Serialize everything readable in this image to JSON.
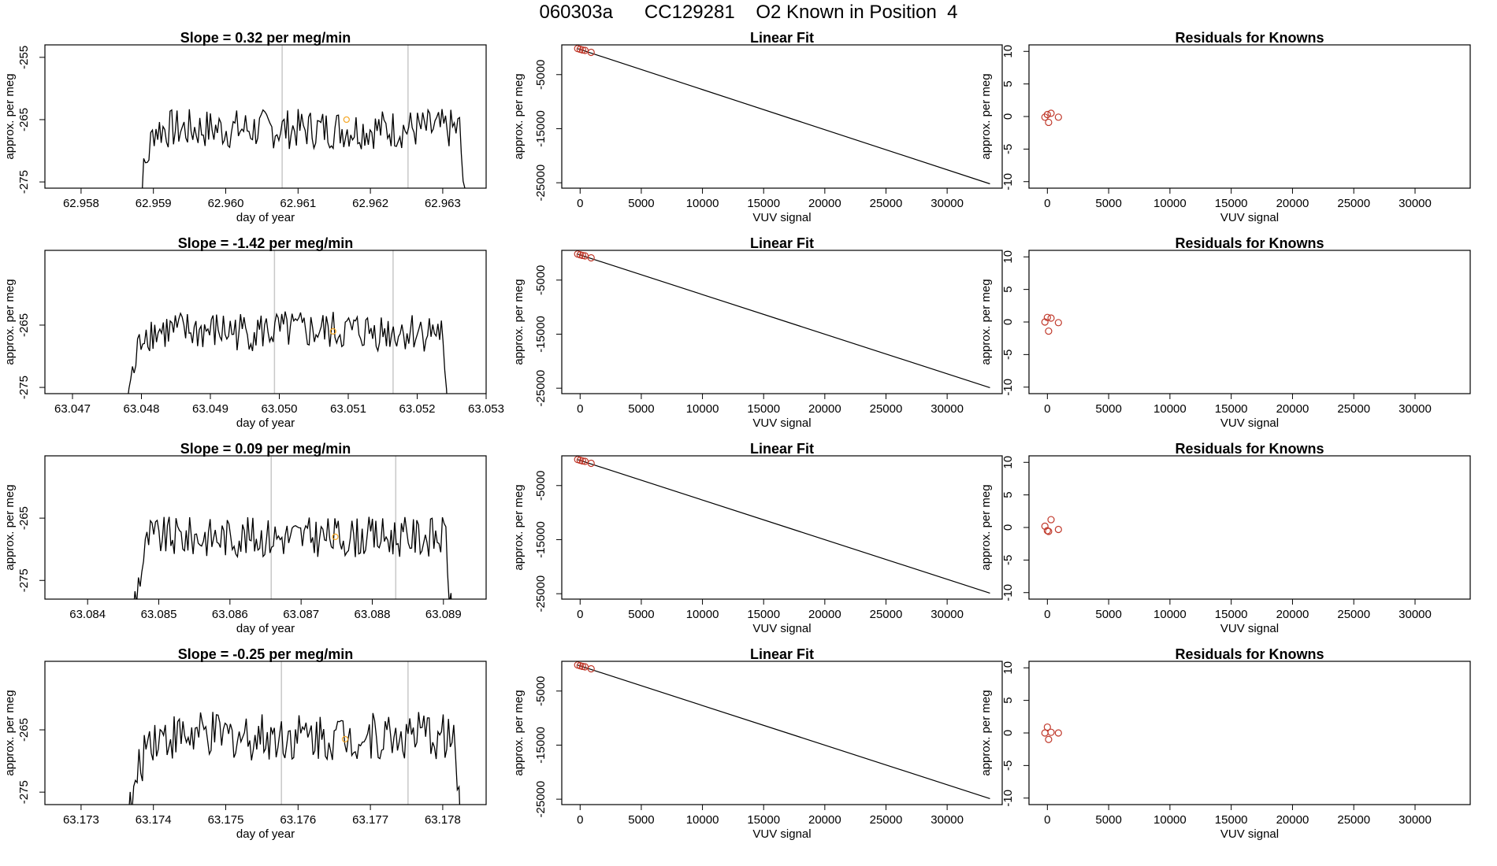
{
  "title": "060303a      CC129281    O2 Known in Position  4",
  "colors": {
    "line": "#000000",
    "marker_orange": "#f5a623",
    "marker_red": "#c0392b",
    "vline": "#c8c8c8"
  },
  "chart_data": [
    {
      "type": "line",
      "row": 1,
      "title": "Slope =  0.32  per meg/min",
      "xlabel": "day of year",
      "ylabel": "approx. per meg",
      "xlim": [
        62.9575,
        62.9636
      ],
      "ylim": [
        -276,
        -253
      ],
      "xticks": [
        62.958,
        62.959,
        62.96,
        62.961,
        62.962,
        62.963
      ],
      "xtick_labels": [
        "62.958",
        "62.959",
        "62.960",
        "62.961",
        "62.962",
        "62.963"
      ],
      "yticks": [
        -255,
        -265,
        -275
      ],
      "ytick_labels": [
        "-255",
        "-265",
        "-275"
      ],
      "vlines": [
        62.96078,
        62.96252
      ],
      "series_x_range": [
        62.95872,
        62.96333
      ],
      "series_mean": -266.5,
      "series_spread": 2.5,
      "marker": {
        "x": 62.96167,
        "y": -265.0
      }
    },
    {
      "type": "line",
      "row": 2,
      "title": "Slope =  -1.42  per meg/min",
      "xlabel": "day of year",
      "ylabel": "approx. per meg",
      "xlim": [
        63.0466,
        63.053
      ],
      "ylim": [
        -276,
        -253
      ],
      "xticks": [
        63.047,
        63.048,
        63.049,
        63.05,
        63.051,
        63.052,
        63.053
      ],
      "xtick_labels": [
        "63.047",
        "63.048",
        "63.049",
        "63.050",
        "63.051",
        "63.052",
        "63.053"
      ],
      "yticks": [
        -265,
        -275
      ],
      "ytick_labels": [
        "-265",
        "-275"
      ],
      "vlines": [
        63.04993,
        63.05165
      ],
      "series_x_range": [
        63.04772,
        63.05245
      ],
      "series_mean": -266.0,
      "series_spread": 2.5,
      "marker": {
        "x": 63.05078,
        "y": -266.0
      }
    },
    {
      "type": "line",
      "row": 3,
      "title": "Slope =  0.09  per meg/min",
      "xlabel": "day of year",
      "ylabel": "approx. per meg",
      "xlim": [
        63.0834,
        63.0896
      ],
      "ylim": [
        -278,
        -255
      ],
      "xticks": [
        63.084,
        63.085,
        63.086,
        63.087,
        63.088,
        63.089
      ],
      "xtick_labels": [
        "63.084",
        "63.085",
        "63.086",
        "63.087",
        "63.088",
        "63.089"
      ],
      "yticks": [
        -265,
        -275
      ],
      "ytick_labels": [
        "-265",
        "-275"
      ],
      "vlines": [
        63.08658,
        63.08833
      ],
      "series_x_range": [
        63.08457,
        63.08913
      ],
      "series_mean": -268.0,
      "series_spread": 2.5,
      "marker": {
        "x": 63.08748,
        "y": -268.0
      }
    },
    {
      "type": "line",
      "row": 4,
      "title": "Slope =  -0.25  per meg/min",
      "xlabel": "day of year",
      "ylabel": "approx. per meg",
      "xlim": [
        63.1725,
        63.1786
      ],
      "ylim": [
        -277,
        -254
      ],
      "xticks": [
        63.173,
        63.174,
        63.175,
        63.176,
        63.177,
        63.178
      ],
      "xtick_labels": [
        "63.173",
        "63.174",
        "63.175",
        "63.176",
        "63.177",
        "63.178"
      ],
      "yticks": [
        -265,
        -275
      ],
      "ytick_labels": [
        "-265",
        "-275"
      ],
      "vlines": [
        63.17577,
        63.17752
      ],
      "series_x_range": [
        63.17363,
        63.17825
      ],
      "series_mean": -266.0,
      "series_spread": 3.0,
      "marker": {
        "x": 63.17665,
        "y": -266.5
      }
    },
    {
      "type": "scatter",
      "row": 1,
      "title": "Linear Fit",
      "xlabel": "VUV signal",
      "ylabel": "approx. per meg",
      "xlim": [
        -1500,
        34500
      ],
      "ylim": [
        -26000,
        500
      ],
      "xticks": [
        0,
        5000,
        10000,
        15000,
        20000,
        25000,
        30000
      ],
      "xtick_labels": [
        "0",
        "5000",
        "10000",
        "15000",
        "20000",
        "25000",
        "30000"
      ],
      "yticks": [
        -5000,
        -15000,
        -25000
      ],
      "ytick_labels": [
        "-5000",
        "-15000",
        "-25000"
      ],
      "fit_line": [
        [
          -200,
          -200
        ],
        [
          33500,
          -25200
        ]
      ],
      "points": [
        [
          -200,
          -180
        ],
        [
          0,
          -320
        ],
        [
          200,
          -440
        ],
        [
          400,
          -520
        ],
        [
          900,
          -880
        ]
      ]
    },
    {
      "type": "scatter",
      "row": 2,
      "title": "Linear Fit",
      "xlabel": "VUV signal",
      "ylabel": "approx. per meg",
      "xlim": [
        -1500,
        34500
      ],
      "ylim": [
        -26000,
        500
      ],
      "xticks": [
        0,
        5000,
        10000,
        15000,
        20000,
        25000,
        30000
      ],
      "xtick_labels": [
        "0",
        "5000",
        "10000",
        "15000",
        "20000",
        "25000",
        "30000"
      ],
      "yticks": [
        -5000,
        -15000,
        -25000
      ],
      "ytick_labels": [
        "-5000",
        "-15000",
        "-25000"
      ],
      "fit_line": [
        [
          -200,
          -200
        ],
        [
          33500,
          -24900
        ]
      ],
      "points": [
        [
          -200,
          -180
        ],
        [
          0,
          -320
        ],
        [
          200,
          -440
        ],
        [
          400,
          -520
        ],
        [
          900,
          -880
        ]
      ]
    },
    {
      "type": "scatter",
      "row": 3,
      "title": "Linear Fit",
      "xlabel": "VUV signal",
      "ylabel": "approx. per meg",
      "xlim": [
        -1500,
        34500
      ],
      "ylim": [
        -26000,
        500
      ],
      "xticks": [
        0,
        5000,
        10000,
        15000,
        20000,
        25000,
        30000
      ],
      "xtick_labels": [
        "0",
        "5000",
        "10000",
        "15000",
        "20000",
        "25000",
        "30000"
      ],
      "yticks": [
        -5000,
        -15000,
        -25000
      ],
      "ytick_labels": [
        "-5000",
        "-15000",
        "-25000"
      ],
      "fit_line": [
        [
          -200,
          -200
        ],
        [
          33500,
          -24900
        ]
      ],
      "points": [
        [
          -200,
          -180
        ],
        [
          0,
          -320
        ],
        [
          200,
          -440
        ],
        [
          400,
          -520
        ],
        [
          900,
          -880
        ]
      ]
    },
    {
      "type": "scatter",
      "row": 4,
      "title": "Linear Fit",
      "xlabel": "VUV signal",
      "ylabel": "approx. per meg",
      "xlim": [
        -1500,
        34500
      ],
      "ylim": [
        -26000,
        500
      ],
      "xticks": [
        0,
        5000,
        10000,
        15000,
        20000,
        25000,
        30000
      ],
      "xtick_labels": [
        "0",
        "5000",
        "10000",
        "15000",
        "20000",
        "25000",
        "30000"
      ],
      "yticks": [
        -5000,
        -15000,
        -25000
      ],
      "ytick_labels": [
        "-5000",
        "-15000",
        "-25000"
      ],
      "fit_line": [
        [
          -200,
          -200
        ],
        [
          33500,
          -24900
        ]
      ],
      "points": [
        [
          -200,
          -180
        ],
        [
          0,
          -320
        ],
        [
          200,
          -440
        ],
        [
          400,
          -520
        ],
        [
          900,
          -880
        ]
      ]
    },
    {
      "type": "scatter",
      "row": 1,
      "title": "Residuals for Knowns",
      "xlabel": "VUV signal",
      "ylabel": "approx. per meg",
      "xlim": [
        -1500,
        34500
      ],
      "ylim": [
        -11,
        11
      ],
      "xticks": [
        0,
        5000,
        10000,
        15000,
        20000,
        25000,
        30000
      ],
      "xtick_labels": [
        "0",
        "5000",
        "10000",
        "15000",
        "20000",
        "25000",
        "30000"
      ],
      "yticks": [
        10,
        5,
        0,
        -5,
        -10
      ],
      "ytick_labels": [
        "10",
        "5",
        "0",
        "-5",
        "-10"
      ],
      "points": [
        [
          -200,
          -0.1
        ],
        [
          0,
          0.3
        ],
        [
          100,
          -0.9
        ],
        [
          300,
          0.5
        ],
        [
          900,
          -0.1
        ]
      ]
    },
    {
      "type": "scatter",
      "row": 2,
      "title": "Residuals for Knowns",
      "xlabel": "VUV signal",
      "ylabel": "approx. per meg",
      "xlim": [
        -1500,
        34500
      ],
      "ylim": [
        -11,
        11
      ],
      "xticks": [
        0,
        5000,
        10000,
        15000,
        20000,
        25000,
        30000
      ],
      "xtick_labels": [
        "0",
        "5000",
        "10000",
        "15000",
        "20000",
        "25000",
        "30000"
      ],
      "yticks": [
        10,
        5,
        0,
        -5,
        -10
      ],
      "ytick_labels": [
        "10",
        "5",
        "0",
        "-5",
        "-10"
      ],
      "points": [
        [
          -200,
          0.0
        ],
        [
          0,
          0.7
        ],
        [
          100,
          -1.4
        ],
        [
          300,
          0.6
        ],
        [
          900,
          -0.1
        ]
      ]
    },
    {
      "type": "scatter",
      "row": 3,
      "title": "Residuals for Knowns",
      "xlabel": "VUV signal",
      "ylabel": "approx. per meg",
      "xlim": [
        -1500,
        34500
      ],
      "ylim": [
        -11,
        11
      ],
      "xticks": [
        0,
        5000,
        10000,
        15000,
        20000,
        25000,
        30000
      ],
      "xtick_labels": [
        "0",
        "5000",
        "10000",
        "15000",
        "20000",
        "25000",
        "30000"
      ],
      "yticks": [
        10,
        5,
        0,
        -5,
        -10
      ],
      "ytick_labels": [
        "10",
        "5",
        "0",
        "-5",
        "-10"
      ],
      "points": [
        [
          -200,
          0.2
        ],
        [
          0,
          -0.5
        ],
        [
          100,
          -0.6
        ],
        [
          300,
          1.2
        ],
        [
          900,
          -0.3
        ]
      ]
    },
    {
      "type": "scatter",
      "row": 4,
      "title": "Residuals for Knowns",
      "xlabel": "VUV signal",
      "ylabel": "approx. per meg",
      "xlim": [
        -1500,
        34500
      ],
      "ylim": [
        -11,
        11
      ],
      "xticks": [
        0,
        5000,
        10000,
        15000,
        20000,
        25000,
        30000
      ],
      "xtick_labels": [
        "0",
        "5000",
        "10000",
        "15000",
        "20000",
        "25000",
        "30000"
      ],
      "yticks": [
        10,
        5,
        0,
        -5,
        -10
      ],
      "ytick_labels": [
        "10",
        "5",
        "0",
        "-5",
        "-10"
      ],
      "points": [
        [
          -200,
          0.0
        ],
        [
          0,
          0.9
        ],
        [
          100,
          -1.0
        ],
        [
          300,
          0.1
        ],
        [
          900,
          0.0
        ]
      ]
    }
  ]
}
